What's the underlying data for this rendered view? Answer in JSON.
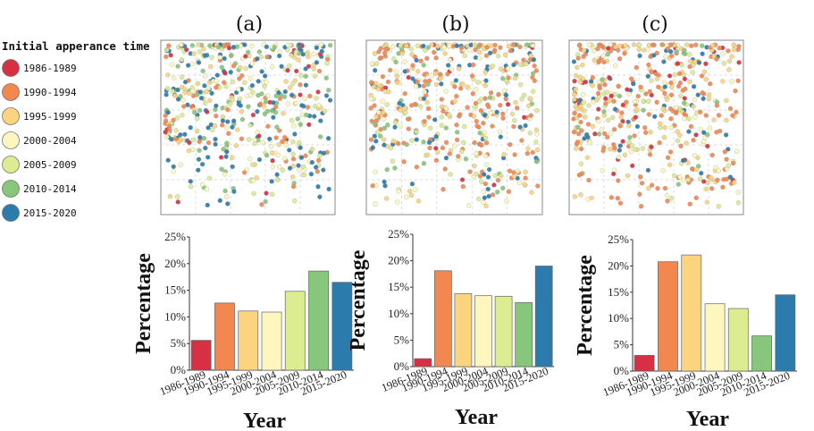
{
  "panel_labels": [
    "(a)",
    "(b)",
    "(c)"
  ],
  "legend": {
    "title": "Initial apperance time",
    "items": [
      {
        "label": "1986-1989",
        "color": "#d73043"
      },
      {
        "label": "1990-1994",
        "color": "#f2874f"
      },
      {
        "label": "1995-1999",
        "color": "#fcd47f"
      },
      {
        "label": "2000-2004",
        "color": "#fdf7bf"
      },
      {
        "label": "2005-2009",
        "color": "#dbec91"
      },
      {
        "label": "2010-2014",
        "color": "#86c77b"
      },
      {
        "label": "2015-2020",
        "color": "#2b7bac"
      }
    ]
  },
  "chart_data": [
    {
      "type": "bar",
      "panel": "(a)",
      "categories": [
        "1986-1989",
        "1990-1994",
        "1995-1999",
        "2000-2004",
        "2005-2009",
        "2010-2014",
        "2015-2020"
      ],
      "values": [
        5.6,
        12.6,
        11.1,
        10.9,
        14.8,
        18.6,
        16.5
      ],
      "colors": [
        "#d73043",
        "#f2874f",
        "#fcd47f",
        "#fdf7bf",
        "#dbec91",
        "#86c77b",
        "#2b7bac"
      ],
      "xlabel": "Year",
      "ylabel": "Percentage",
      "ylim": [
        0,
        25
      ],
      "yticks": [
        "0%",
        "5%",
        "10%",
        "15%",
        "20%",
        "25%"
      ]
    },
    {
      "type": "bar",
      "panel": "(b)",
      "categories": [
        "1986-1989",
        "1990-1994",
        "1995-1999",
        "2000-2004",
        "2005-2009",
        "2010-2014",
        "2015-2020"
      ],
      "values": [
        1.5,
        18.1,
        13.8,
        13.4,
        13.3,
        12.1,
        19.0
      ],
      "colors": [
        "#d73043",
        "#f2874f",
        "#fcd47f",
        "#fdf7bf",
        "#dbec91",
        "#86c77b",
        "#2b7bac"
      ],
      "xlabel": "Year",
      "ylabel": "Percentage",
      "ylim": [
        0,
        25
      ],
      "yticks": [
        "0%",
        "5%",
        "10%",
        "15%",
        "20%",
        "25%"
      ]
    },
    {
      "type": "bar",
      "panel": "(c)",
      "categories": [
        "1986-1989",
        "1990-1994",
        "1995-1999",
        "2000-2004",
        "2005-2009",
        "2010-2014",
        "2015-2020"
      ],
      "values": [
        3.0,
        20.8,
        22.1,
        12.8,
        11.9,
        6.7,
        14.5
      ],
      "colors": [
        "#d73043",
        "#f2874f",
        "#fcd47f",
        "#fdf7bf",
        "#dbec91",
        "#86c77b",
        "#2b7bac"
      ],
      "xlabel": "Year",
      "ylabel": "Percentage",
      "ylim": [
        0,
        25
      ],
      "yticks": [
        "0%",
        "5%",
        "10%",
        "15%",
        "20%",
        "25%"
      ]
    }
  ]
}
